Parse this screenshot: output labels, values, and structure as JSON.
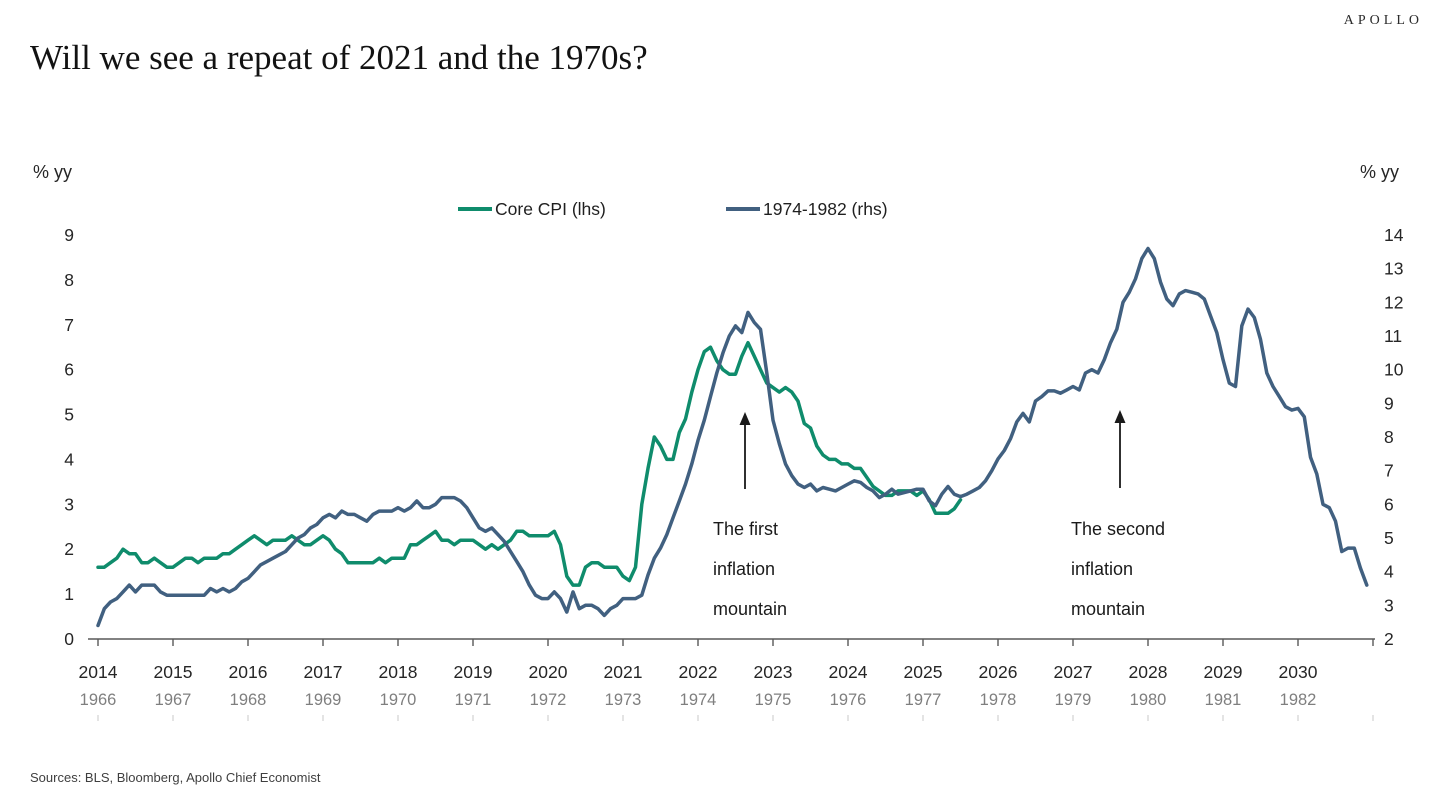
{
  "brand": "APOLLO",
  "title": "Will we see a repeat of 2021 and the 1970s?",
  "sources": "Sources: BLS, Bloomberg, Apollo Chief Economist",
  "chart_data": {
    "type": "line",
    "title": "Will we see a repeat of 2021 and the 1970s?",
    "grid": false,
    "legend_position": "top-center",
    "left_axis": {
      "unit": "% yy",
      "min": 0,
      "max": 9,
      "ticks": [
        0,
        1,
        2,
        3,
        4,
        5,
        6,
        7,
        8,
        9
      ]
    },
    "right_axis": {
      "unit": "% yy",
      "min": 2,
      "max": 14,
      "ticks": [
        2,
        3,
        4,
        5,
        6,
        7,
        8,
        9,
        10,
        11,
        12,
        13,
        14
      ]
    },
    "x_axis": {
      "primary_years": [
        2014,
        2015,
        2016,
        2017,
        2018,
        2019,
        2020,
        2021,
        2022,
        2023,
        2024,
        2025,
        2026,
        2027,
        2028,
        2029,
        2030
      ],
      "secondary_years": [
        1966,
        1967,
        1968,
        1969,
        1970,
        1971,
        1972,
        1973,
        1974,
        1975,
        1976,
        1977,
        1978,
        1979,
        1980,
        1981,
        1982
      ]
    },
    "legend": [
      {
        "name": "Core CPI (lhs)",
        "color": "#0F8C6C"
      },
      {
        "name": "1974-1982 (rhs)",
        "color": "#416080"
      }
    ],
    "annotations": [
      {
        "lines": [
          "The first",
          "inflation",
          "mountain"
        ]
      },
      {
        "lines": [
          "The second",
          "inflation",
          "mountain"
        ]
      }
    ],
    "series": [
      {
        "name": "Core CPI (lhs)",
        "axis": "left",
        "color": "#0F8C6C",
        "start_year": 2014,
        "frequency": "monthly",
        "values": [
          1.6,
          1.6,
          1.7,
          1.8,
          2.0,
          1.9,
          1.9,
          1.7,
          1.7,
          1.8,
          1.7,
          1.6,
          1.6,
          1.7,
          1.8,
          1.8,
          1.7,
          1.8,
          1.8,
          1.8,
          1.9,
          1.9,
          2.0,
          2.1,
          2.2,
          2.3,
          2.2,
          2.1,
          2.2,
          2.2,
          2.2,
          2.3,
          2.2,
          2.1,
          2.1,
          2.2,
          2.3,
          2.2,
          2.0,
          1.9,
          1.7,
          1.7,
          1.7,
          1.7,
          1.7,
          1.8,
          1.7,
          1.8,
          1.8,
          1.8,
          2.1,
          2.1,
          2.2,
          2.3,
          2.4,
          2.2,
          2.2,
          2.1,
          2.2,
          2.2,
          2.2,
          2.1,
          2.0,
          2.1,
          2.0,
          2.1,
          2.2,
          2.4,
          2.4,
          2.3,
          2.3,
          2.3,
          2.3,
          2.4,
          2.1,
          1.4,
          1.2,
          1.2,
          1.6,
          1.7,
          1.7,
          1.6,
          1.6,
          1.6,
          1.4,
          1.3,
          1.6,
          3.0,
          3.8,
          4.5,
          4.3,
          4.0,
          4.0,
          4.6,
          4.9,
          5.5,
          6.0,
          6.4,
          6.5,
          6.2,
          6.0,
          5.9,
          5.9,
          6.3,
          6.6,
          6.3,
          6.0,
          5.7,
          5.6,
          5.5,
          5.6,
          5.5,
          5.3,
          4.8,
          4.7,
          4.3,
          4.1,
          4.0,
          4.0,
          3.9,
          3.9,
          3.8,
          3.8,
          3.6,
          3.4,
          3.3,
          3.2,
          3.2,
          3.3,
          3.3,
          3.3,
          3.2,
          3.3,
          3.1,
          2.8,
          2.8,
          2.8,
          2.9,
          3.1
        ]
      },
      {
        "name": "1974-1982 (rhs)",
        "axis": "right",
        "color": "#416080",
        "start_year": 1966,
        "frequency": "monthly",
        "values": [
          2.4,
          2.9,
          3.1,
          3.2,
          3.4,
          3.6,
          3.4,
          3.6,
          3.6,
          3.6,
          3.4,
          3.3,
          3.3,
          3.3,
          3.3,
          3.3,
          3.3,
          3.3,
          3.5,
          3.4,
          3.5,
          3.4,
          3.5,
          3.7,
          3.8,
          4.0,
          4.2,
          4.3,
          4.4,
          4.5,
          4.6,
          4.8,
          5.0,
          5.1,
          5.3,
          5.4,
          5.6,
          5.7,
          5.6,
          5.8,
          5.7,
          5.7,
          5.6,
          5.5,
          5.7,
          5.8,
          5.8,
          5.8,
          5.9,
          5.8,
          5.9,
          6.1,
          5.9,
          5.9,
          6.0,
          6.2,
          6.2,
          6.2,
          6.1,
          5.9,
          5.6,
          5.3,
          5.2,
          5.3,
          5.1,
          4.9,
          4.6,
          4.3,
          4.0,
          3.6,
          3.3,
          3.2,
          3.2,
          3.4,
          3.2,
          2.8,
          3.4,
          2.9,
          3.0,
          3.0,
          2.9,
          2.7,
          2.9,
          3.0,
          3.2,
          3.2,
          3.2,
          3.3,
          3.9,
          4.4,
          4.7,
          5.1,
          5.6,
          6.1,
          6.6,
          7.2,
          7.9,
          8.5,
          9.2,
          9.9,
          10.5,
          11.0,
          11.3,
          11.1,
          11.7,
          11.4,
          11.2,
          9.9,
          8.5,
          7.8,
          7.2,
          6.85,
          6.6,
          6.5,
          6.6,
          6.4,
          6.5,
          6.45,
          6.4,
          6.5,
          6.6,
          6.7,
          6.65,
          6.5,
          6.4,
          6.2,
          6.3,
          6.45,
          6.3,
          6.35,
          6.4,
          6.45,
          6.45,
          6.1,
          5.96,
          6.3,
          6.53,
          6.3,
          6.23,
          6.3,
          6.4,
          6.5,
          6.7,
          7.0,
          7.35,
          7.6,
          7.95,
          8.45,
          8.7,
          8.45,
          9.07,
          9.2,
          9.37,
          9.37,
          9.3,
          9.4,
          9.5,
          9.4,
          9.9,
          10.0,
          9.9,
          10.3,
          10.8,
          11.2,
          12.0,
          12.3,
          12.7,
          13.3,
          13.6,
          13.3,
          12.6,
          12.1,
          11.9,
          12.25,
          12.35,
          12.3,
          12.25,
          12.1,
          11.6,
          11.1,
          10.3,
          9.6,
          9.5,
          11.3,
          11.8,
          11.55,
          10.9,
          9.9,
          9.5,
          9.2,
          8.9,
          8.8,
          8.85,
          8.6,
          7.4,
          6.9,
          6.0,
          5.9,
          5.5,
          4.6,
          4.7,
          4.7,
          4.1,
          3.6
        ]
      }
    ]
  }
}
